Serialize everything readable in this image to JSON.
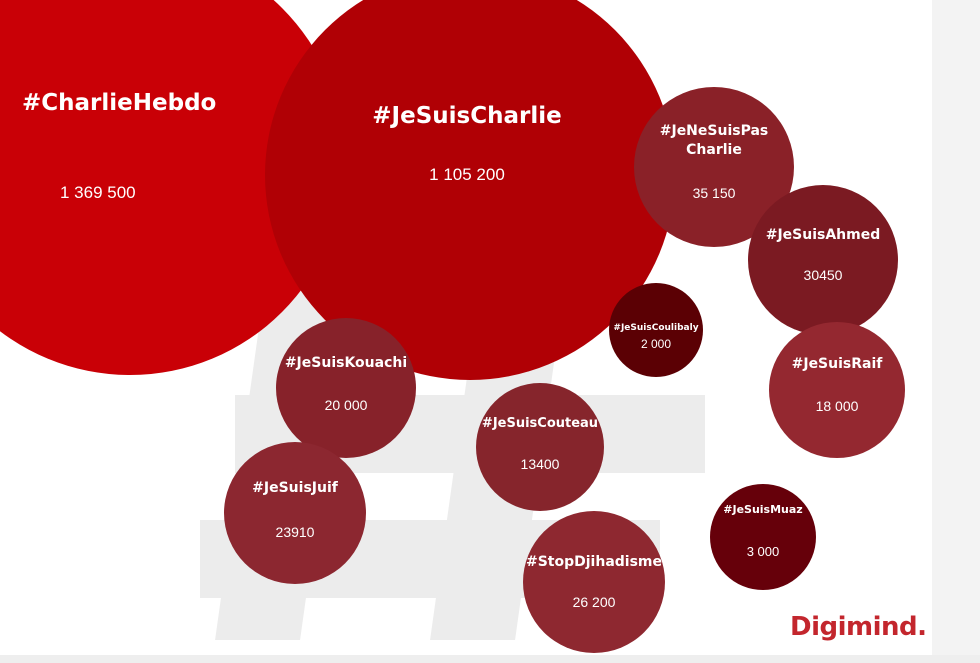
{
  "chart_data": {
    "type": "bubble",
    "title": "",
    "items": [
      {
        "label": "#CharlieHebdo",
        "value": 1369500,
        "value_text": "1 369 500",
        "color": "#c90006"
      },
      {
        "label": "#JeSuisCharlie",
        "value": 1105200,
        "value_text": "1 105 200",
        "color": "#b00005"
      },
      {
        "label": "#JeNeSuisPas Charlie",
        "value": 35150,
        "value_text": "35 150",
        "color": "#8a2128"
      },
      {
        "label": "#JeSuisAhmed",
        "value": 30450,
        "value_text": "30450",
        "color": "#7b1a22"
      },
      {
        "label": "#JeSuisCoulibaly",
        "value": 2000,
        "value_text": "2 000",
        "color": "#5b0004"
      },
      {
        "label": "#JeSuisRaif",
        "value": 18000,
        "value_text": "18 000",
        "color": "#942830"
      },
      {
        "label": "#JeSuisKouachi",
        "value": 20000,
        "value_text": "20 000",
        "color": "#87222a"
      },
      {
        "label": "#JeSuisCouteau",
        "value": 13400,
        "value_text": "13400",
        "color": "#86252c"
      },
      {
        "label": "#JeSuisJuif",
        "value": 23910,
        "value_text": "23910",
        "color": "#8c2730"
      },
      {
        "label": "#JeSuisMuaz",
        "value": 3000,
        "value_text": "3 000",
        "color": "#66000a"
      },
      {
        "label": "#StopDjihadisme",
        "value": 26200,
        "value_text": "26 200",
        "color": "#8e2830"
      }
    ]
  },
  "brand": {
    "name": "Digimind.",
    "color": "#c3262d"
  },
  "background": {
    "watermark": "#",
    "watermark_color": "#ececec"
  }
}
